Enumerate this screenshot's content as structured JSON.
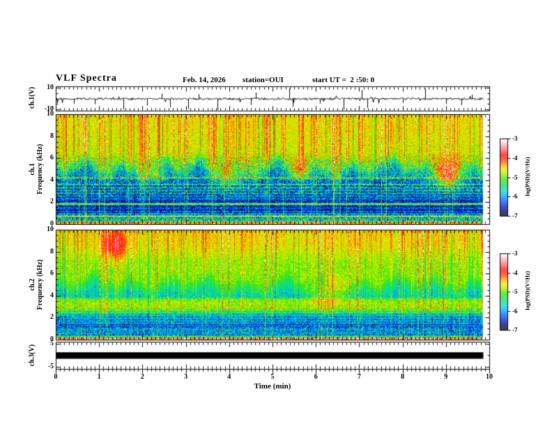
{
  "title": {
    "main": "VLF Spectra",
    "date": "Feb. 14, 2026",
    "station": "station=OUI",
    "start_ut": "start UT =  2 :50: 0"
  },
  "xaxis": {
    "label": "Time (min)",
    "min": 0,
    "max": 10,
    "ticks": [
      0,
      1,
      2,
      3,
      4,
      5,
      6,
      7,
      8,
      9,
      10
    ],
    "minor_step": 0.1,
    "data_end_min": 9.85
  },
  "colorbar": {
    "label": "log(PSD)(V²/Hz)",
    "ticks": [
      -3,
      -4,
      -5,
      -6,
      -7
    ],
    "zmin": -7,
    "zmax": -3
  },
  "colormap": {
    "stops": [
      [
        0.0,
        "#000008"
      ],
      [
        0.05,
        "#000050"
      ],
      [
        0.11,
        "#0010c0"
      ],
      [
        0.18,
        "#0050ff"
      ],
      [
        0.26,
        "#00a8ff"
      ],
      [
        0.33,
        "#00e0d0"
      ],
      [
        0.4,
        "#10e060"
      ],
      [
        0.48,
        "#38e800"
      ],
      [
        0.55,
        "#b4ee00"
      ],
      [
        0.6,
        "#f0f000"
      ],
      [
        0.66,
        "#ffa800"
      ],
      [
        0.72,
        "#ff4000"
      ],
      [
        0.79,
        "#ff0808"
      ],
      [
        0.86,
        "#ff6468"
      ],
      [
        0.93,
        "#ffb6bc"
      ],
      [
        1.0,
        "#ffffff"
      ]
    ]
  },
  "chart_data": [
    {
      "type": "line",
      "name": "ch.1 waveform",
      "ylabel": "ch.1(V)",
      "ylim": [
        -11.5,
        11.5
      ],
      "yticks": [
        10,
        -10
      ],
      "yticks_minor": [
        5,
        0,
        -5
      ],
      "baseline": 0,
      "noise_v": 0.8,
      "seed": 7,
      "spikes": [
        [
          0.42,
          -4.5
        ],
        [
          0.9,
          -5
        ],
        [
          1.56,
          -10
        ],
        [
          2.1,
          -6.5
        ],
        [
          2.44,
          5
        ],
        [
          2.64,
          -8
        ],
        [
          3.05,
          -9.5
        ],
        [
          3.3,
          4.5
        ],
        [
          3.73,
          -10.5
        ],
        [
          4.5,
          -6
        ],
        [
          4.62,
          6
        ],
        [
          5.39,
          9.5
        ],
        [
          5.46,
          -7.5
        ],
        [
          6.1,
          -4.5
        ],
        [
          6.64,
          -10
        ],
        [
          7.05,
          8.5
        ],
        [
          7.19,
          -8.5
        ],
        [
          8.0,
          -4
        ],
        [
          8.52,
          9.5
        ],
        [
          9.0,
          -5
        ],
        [
          9.35,
          -6
        ],
        [
          9.6,
          4
        ]
      ]
    },
    {
      "type": "heatmap",
      "name": "ch.1 spectrogram",
      "ylabel_line1": "ch.1",
      "ylabel_line2": "Frequency (kHz)",
      "ylim": [
        0,
        10
      ],
      "yticks": [
        10,
        8,
        6,
        4,
        2,
        0
      ],
      "y_minor_step": 0.5,
      "zrange": [
        -7,
        -3
      ],
      "seed": 3,
      "noise": 0.55,
      "noise_profile": [
        [
          0,
          0.9
        ],
        [
          2,
          1.0
        ],
        [
          3,
          1.35
        ],
        [
          5.5,
          1.35
        ],
        [
          6.5,
          0.6
        ],
        [
          10,
          0.5
        ]
      ],
      "profile": [
        [
          0,
          -6.0
        ],
        [
          0.08,
          -5.1
        ],
        [
          0.2,
          -6.35
        ],
        [
          0.35,
          -6.7
        ],
        [
          0.9,
          -6.68
        ],
        [
          2.1,
          -6.5
        ],
        [
          3.4,
          -6.32
        ],
        [
          4.3,
          -6.05
        ],
        [
          6.2,
          -5.9
        ]
      ],
      "top_profile": [
        [
          4,
          -5.3
        ],
        [
          5.3,
          -5.0
        ],
        [
          6.5,
          -4.72
        ],
        [
          8.5,
          -4.65
        ],
        [
          10,
          -4.6
        ]
      ],
      "boundary": {
        "base": 4.9,
        "amp": 1.15,
        "blend": 0.8
      },
      "lines": [
        [
          4.2,
          1.25
        ],
        [
          3.6,
          0.95
        ],
        [
          3.3,
          0.9
        ],
        [
          3.05,
          0.85
        ],
        [
          2.8,
          0.8
        ],
        [
          2.55,
          0.6
        ],
        [
          2.3,
          0.55
        ],
        [
          1.9,
          0.6
        ],
        [
          1.75,
          0.7
        ],
        [
          1.45,
          0.55
        ],
        [
          1.15,
          0.6
        ],
        [
          0.95,
          1.0
        ],
        [
          0.8,
          1.15
        ],
        [
          0.55,
          1.3
        ],
        [
          0.4,
          1.5
        ],
        [
          0.25,
          1.7
        ],
        [
          0.15,
          1.25
        ],
        [
          0.06,
          1.6
        ]
      ],
      "maroon_lines": [
        [
          0.7,
          -4.15
        ],
        [
          1.85,
          -4.4
        ]
      ],
      "blobs": [
        [
          9.05,
          4.6,
          0.28,
          0.9,
          1.35
        ],
        [
          5.65,
          4.9,
          0.18,
          0.7,
          1.0
        ],
        [
          4.05,
          4.4,
          0.22,
          0.8,
          0.85
        ],
        [
          2.3,
          4.6,
          0.15,
          0.6,
          0.8
        ]
      ],
      "streaks": {
        "strong_prob": 0.055,
        "medium_prob": 0.28,
        "w_strong": [
          [
            0,
            0.85
          ],
          [
            3,
            0.75
          ],
          [
            4.5,
            0.62
          ],
          [
            6,
            1.0
          ],
          [
            10,
            1.05
          ]
        ],
        "w_medium": [
          [
            0,
            0.22
          ],
          [
            4.2,
            0.5
          ],
          [
            6.2,
            0.85
          ],
          [
            10,
            0.9
          ]
        ],
        "w_dark": [
          [
            0,
            0.25
          ],
          [
            6,
            1.0
          ],
          [
            10,
            1.0
          ]
        ]
      }
    },
    {
      "type": "heatmap",
      "name": "ch.2 spectrogram",
      "ylabel_line1": "ch.2",
      "ylabel_line2": "Frequency (kHz)",
      "ylim": [
        0,
        10
      ],
      "yticks": [
        10,
        8,
        6,
        4,
        2,
        0
      ],
      "y_minor_step": 0.5,
      "zrange": [
        -7,
        -3
      ],
      "seed": 8,
      "noise": 0.5,
      "noise_profile": [
        [
          0,
          0.9
        ],
        [
          1,
          1.05
        ],
        [
          2.5,
          1.15
        ],
        [
          3.3,
          0.55
        ],
        [
          3.9,
          1.1
        ],
        [
          5,
          0.6
        ],
        [
          10,
          0.55
        ]
      ],
      "profile": [
        [
          0,
          -5.8
        ],
        [
          0.08,
          -5.0
        ],
        [
          0.25,
          -6.1
        ],
        [
          0.45,
          -6.7
        ],
        [
          1.05,
          -6.6
        ],
        [
          1.5,
          -6.3
        ],
        [
          2.15,
          -6.1
        ],
        [
          2.55,
          -5.5
        ],
        [
          3.0,
          -4.95
        ],
        [
          3.35,
          -4.85
        ],
        [
          3.65,
          -5.0
        ],
        [
          3.9,
          -5.7
        ],
        [
          5.5,
          -5.65
        ]
      ],
      "top_profile": [
        [
          4,
          -5.15
        ],
        [
          5.2,
          -4.95
        ],
        [
          7,
          -4.9
        ],
        [
          8.6,
          -4.62
        ],
        [
          10,
          -4.55
        ]
      ],
      "boundary": {
        "base": 4.8,
        "amp": 0.95,
        "blend": 0.9
      },
      "lines": [
        [
          2.9,
          0.45
        ],
        [
          2.7,
          0.4
        ],
        [
          2.45,
          0.45
        ],
        [
          2.2,
          0.5
        ],
        [
          1.95,
          0.55
        ],
        [
          1.7,
          0.5
        ],
        [
          1.5,
          0.55
        ],
        [
          1.25,
          0.5
        ],
        [
          1.05,
          0.85
        ],
        [
          0.9,
          1.05
        ],
        [
          0.75,
          0.85
        ],
        [
          0.6,
          1.25
        ],
        [
          0.45,
          0.8
        ],
        [
          0.3,
          1.4
        ],
        [
          0.15,
          1.6
        ],
        [
          0.05,
          1.9
        ]
      ],
      "maroon_lines": [],
      "blobs": [
        [
          6.25,
          4.4,
          0.3,
          0.8,
          0.7
        ],
        [
          1.35,
          8.6,
          0.2,
          0.9,
          0.9
        ]
      ],
      "streaks": {
        "strong_prob": 0.05,
        "medium_prob": 0.3,
        "w_strong": [
          [
            0,
            0.6
          ],
          [
            3,
            0.55
          ],
          [
            4,
            0.62
          ],
          [
            6,
            1.0
          ],
          [
            10,
            1.0
          ]
        ],
        "w_medium": [
          [
            0,
            0.3
          ],
          [
            3.8,
            0.7
          ],
          [
            10,
            0.78
          ]
        ],
        "w_dark": [
          [
            0,
            0.25
          ],
          [
            6,
            1.0
          ],
          [
            10,
            1.0
          ]
        ]
      }
    },
    {
      "type": "line",
      "name": "ch.3 waveform",
      "ylabel": "ch.3(V)",
      "ylim": [
        -5.8,
        5.8
      ],
      "yticks": [
        5,
        -5
      ],
      "yticks_minor": [
        0
      ],
      "baseline": 0,
      "value": 0,
      "line_thickness_v": 1.4,
      "flat": true
    }
  ]
}
